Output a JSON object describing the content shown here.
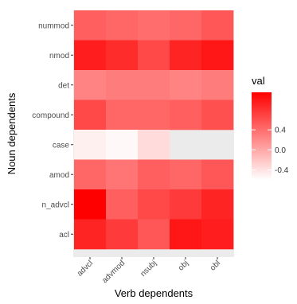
{
  "chart_data": {
    "type": "heatmap",
    "xlabel": "Verb dependents",
    "ylabel": "Noun dependents",
    "x_categories": [
      "advcl",
      "advmod",
      "nsubj",
      "obj",
      "obl"
    ],
    "y_categories_top_to_bottom": [
      "nummod",
      "nmod",
      "det",
      "compound",
      "case",
      "amod",
      "n_advcl",
      "acl"
    ],
    "values": [
      [
        0.5,
        0.45,
        0.4,
        0.45,
        0.55
      ],
      [
        0.95,
        0.85,
        0.65,
        0.9,
        1.0
      ],
      [
        0.25,
        0.3,
        0.3,
        0.25,
        0.3
      ],
      [
        0.65,
        0.45,
        0.45,
        0.5,
        0.6
      ],
      [
        -0.5,
        -0.55,
        -0.35,
        null,
        null
      ],
      [
        0.45,
        0.35,
        0.5,
        0.45,
        0.55
      ],
      [
        1.15,
        0.5,
        0.65,
        0.75,
        0.9
      ],
      [
        0.9,
        0.75,
        0.55,
        1.0,
        0.95
      ]
    ],
    "legend": {
      "title": "val",
      "ticks": [
        0.4,
        0.0,
        -0.4
      ],
      "tick_labels": [
        "0.4",
        "0.0",
        "-0.4"
      ],
      "range": [
        -0.6,
        1.15
      ],
      "low_color": "#ffffff",
      "high_color": "#ff0000"
    },
    "panel_background": "#ebebeb",
    "legend_placement": "right",
    "grid": false
  }
}
